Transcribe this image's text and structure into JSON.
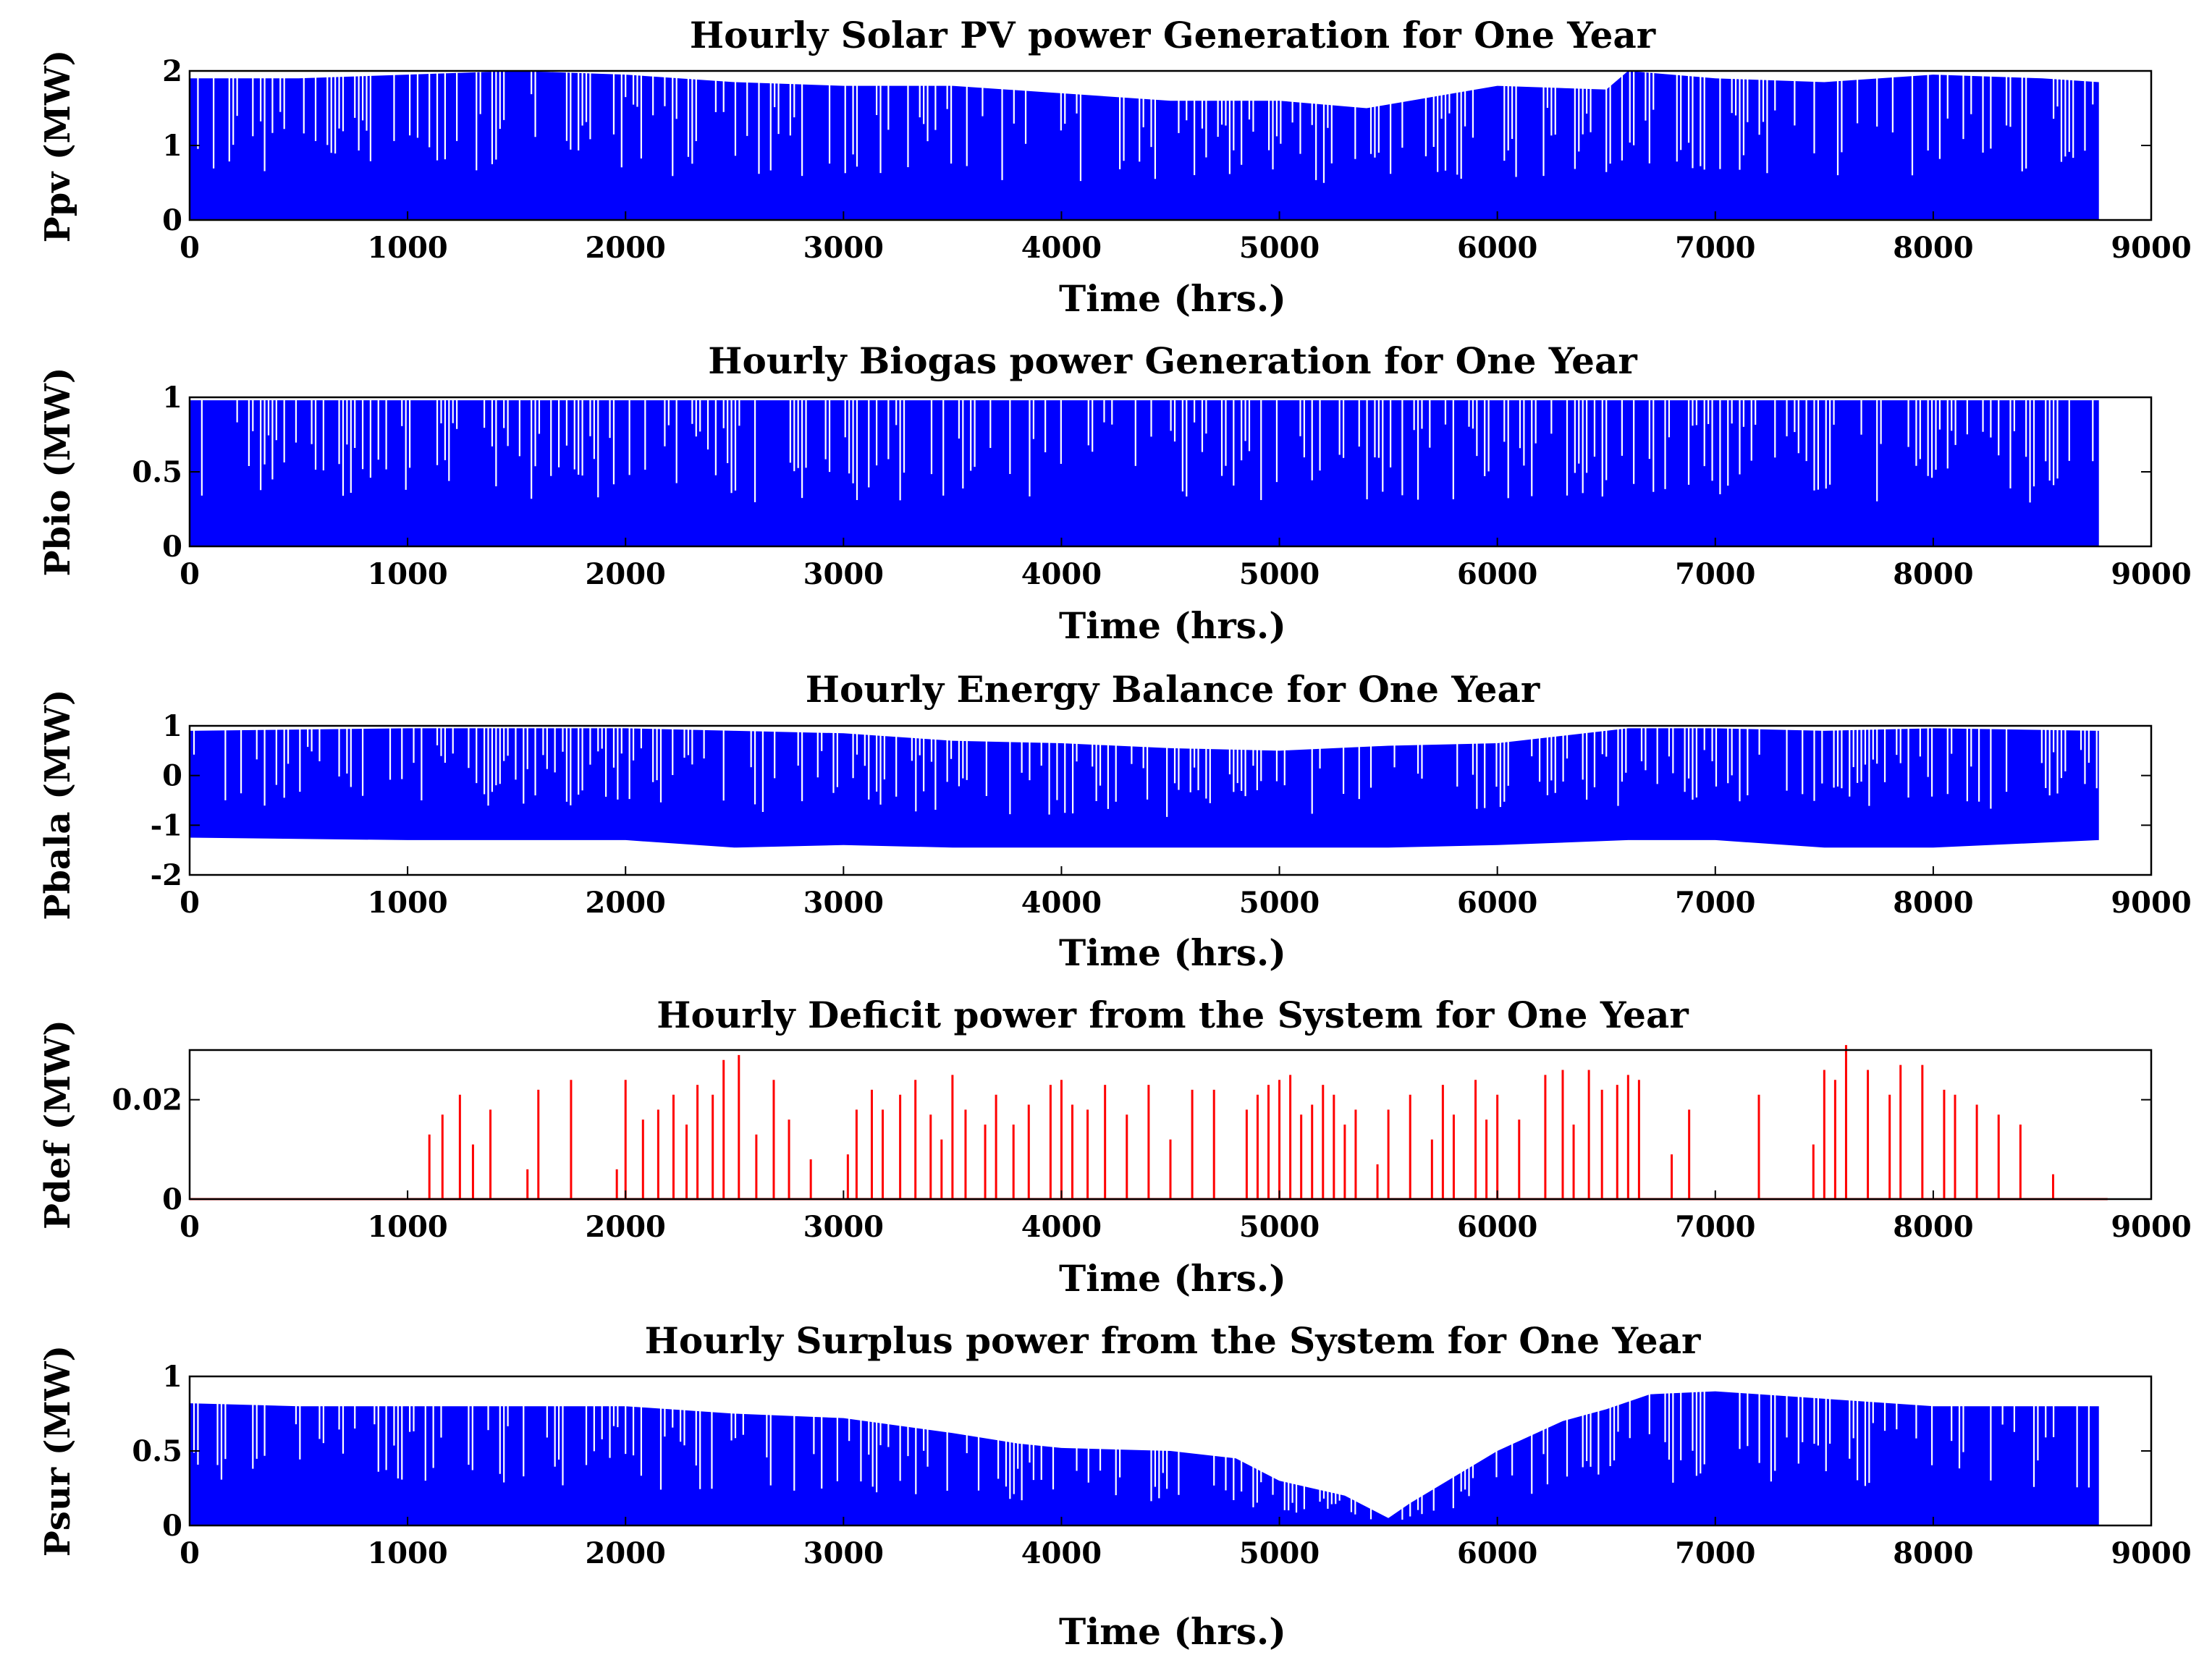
{
  "colors": {
    "pv": "#0000ff",
    "bio": "#0000ff",
    "balance": "#0000ff",
    "deficit": "#ff0000",
    "surplus": "#0000ff"
  },
  "chart_data": [
    {
      "id": "pv",
      "type": "area",
      "title": "Hourly Solar PV power Generation for One Year",
      "xlabel": "Time (hrs.)",
      "ylabel": "Ppv (MW)",
      "xlim": [
        0,
        9000
      ],
      "ylim": [
        0,
        2
      ],
      "xticks": [
        0,
        1000,
        2000,
        3000,
        4000,
        5000,
        6000,
        7000,
        8000,
        9000
      ],
      "yticks": [
        0,
        1,
        2
      ],
      "series": [
        {
          "color": "#0000ff",
          "x": [
            0,
            500,
            1000,
            1500,
            2000,
            2500,
            3000,
            3500,
            4000,
            4500,
            4900,
            5000,
            5400,
            6000,
            6500,
            6600,
            7000,
            7500,
            8000,
            8500,
            8760
          ],
          "ymin": [
            0,
            0,
            0,
            0,
            0,
            0,
            0,
            0,
            0,
            0,
            0,
            0,
            0,
            0,
            0,
            0,
            0,
            0,
            0,
            0,
            0
          ],
          "ymax": [
            1.9,
            1.9,
            1.95,
            2.0,
            1.95,
            1.85,
            1.8,
            1.8,
            1.7,
            1.6,
            1.6,
            1.6,
            1.5,
            1.8,
            1.75,
            2.0,
            1.9,
            1.85,
            1.95,
            1.9,
            1.85
          ]
        }
      ]
    },
    {
      "id": "bio",
      "type": "area",
      "title": "Hourly Biogas power Generation for One Year",
      "xlabel": "Time (hrs.)",
      "ylabel": "Pbio (MW)",
      "xlim": [
        0,
        9000
      ],
      "ylim": [
        0,
        1
      ],
      "xticks": [
        0,
        1000,
        2000,
        3000,
        4000,
        5000,
        6000,
        7000,
        8000,
        9000
      ],
      "yticks": [
        0,
        0.5,
        1
      ],
      "series": [
        {
          "color": "#0000ff",
          "x": [
            0,
            8760
          ],
          "ymin": [
            0,
            0
          ],
          "ymax": [
            0.98,
            0.98
          ]
        }
      ]
    },
    {
      "id": "balance",
      "type": "area",
      "title": "Hourly Energy Balance for One Year",
      "xlabel": "Time (hrs.)",
      "ylabel": "Pbala (MW)",
      "xlim": [
        0,
        9000
      ],
      "ylim": [
        -2,
        1
      ],
      "xticks": [
        0,
        1000,
        2000,
        3000,
        4000,
        5000,
        6000,
        7000,
        8000,
        9000
      ],
      "yticks": [
        -2,
        -1,
        0,
        1
      ],
      "series": [
        {
          "color": "#0000ff",
          "x": [
            0,
            1000,
            2000,
            2500,
            3000,
            3500,
            4000,
            4500,
            5000,
            5500,
            6000,
            6600,
            7000,
            7500,
            8000,
            8760
          ],
          "ymin": [
            -1.25,
            -1.3,
            -1.3,
            -1.45,
            -1.4,
            -1.45,
            -1.45,
            -1.45,
            -1.45,
            -1.45,
            -1.4,
            -1.3,
            -1.3,
            -1.45,
            -1.45,
            -1.3
          ],
          "ymax": [
            0.9,
            0.95,
            0.95,
            0.9,
            0.85,
            0.7,
            0.65,
            0.55,
            0.5,
            0.6,
            0.65,
            0.95,
            0.95,
            0.9,
            0.95,
            0.9
          ]
        }
      ]
    },
    {
      "id": "deficit",
      "type": "bar",
      "title": "Hourly Deficit power from the System for One Year",
      "xlabel": "Time (hrs.)",
      "ylabel": "Pdef (MW)",
      "xlim": [
        0,
        9000
      ],
      "ylim": [
        0,
        0.03
      ],
      "xticks": [
        0,
        1000,
        2000,
        3000,
        4000,
        5000,
        6000,
        7000,
        8000,
        9000
      ],
      "yticks": [
        0,
        0.02
      ],
      "series": [
        {
          "color": "#ff0000",
          "x": [
            1100,
            1160,
            1240,
            1300,
            1380,
            1550,
            1600,
            1750,
            1960,
            2000,
            2080,
            2150,
            2220,
            2280,
            2330,
            2400,
            2450,
            2520,
            2600,
            2680,
            2750,
            2850,
            3020,
            3060,
            3130,
            3180,
            3260,
            3330,
            3400,
            3450,
            3500,
            3560,
            3650,
            3700,
            3780,
            3850,
            3950,
            4000,
            4050,
            4120,
            4200,
            4300,
            4400,
            4500,
            4600,
            4700,
            4850,
            4900,
            4950,
            5000,
            5050,
            5100,
            5150,
            5200,
            5250,
            5300,
            5350,
            5450,
            5500,
            5600,
            5700,
            5750,
            5800,
            5900,
            5950,
            6000,
            6100,
            6220,
            6300,
            6350,
            6420,
            6480,
            6550,
            6600,
            6650,
            6800,
            6880,
            7200,
            7450,
            7500,
            7550,
            7600,
            7700,
            7800,
            7850,
            7950,
            8050,
            8100,
            8200,
            8300,
            8400,
            8550
          ],
          "y": [
            0.013,
            0.017,
            0.021,
            0.011,
            0.018,
            0.006,
            0.022,
            0.024,
            0.006,
            0.024,
            0.016,
            0.018,
            0.021,
            0.015,
            0.023,
            0.021,
            0.028,
            0.029,
            0.013,
            0.024,
            0.016,
            0.008,
            0.009,
            0.018,
            0.022,
            0.018,
            0.021,
            0.024,
            0.017,
            0.012,
            0.025,
            0.018,
            0.015,
            0.021,
            0.015,
            0.019,
            0.023,
            0.024,
            0.019,
            0.018,
            0.023,
            0.017,
            0.023,
            0.012,
            0.022,
            0.022,
            0.018,
            0.021,
            0.023,
            0.024,
            0.025,
            0.017,
            0.019,
            0.023,
            0.021,
            0.015,
            0.018,
            0.007,
            0.018,
            0.021,
            0.012,
            0.023,
            0.017,
            0.024,
            0.016,
            0.021,
            0.016,
            0.025,
            0.026,
            0.015,
            0.026,
            0.022,
            0.023,
            0.025,
            0.024,
            0.009,
            0.018,
            0.021,
            0.011,
            0.026,
            0.024,
            0.031,
            0.026,
            0.021,
            0.027,
            0.027,
            0.022,
            0.021,
            0.019,
            0.017,
            0.015,
            0.005
          ]
        }
      ]
    },
    {
      "id": "surplus",
      "type": "area",
      "title": "Hourly Surplus power from the System for One Year",
      "xlabel": "Time (hrs.)",
      "ylabel": "Psur (MW)",
      "xlim": [
        0,
        9000
      ],
      "ylim": [
        0,
        1
      ],
      "xticks": [
        0,
        1000,
        2000,
        3000,
        4000,
        5000,
        6000,
        7000,
        8000,
        9000
      ],
      "yticks": [
        0,
        0.5,
        1
      ],
      "series": [
        {
          "color": "#0000ff",
          "x": [
            0,
            500,
            1000,
            1500,
            2000,
            2500,
            3000,
            3500,
            3800,
            4000,
            4500,
            4800,
            5000,
            5300,
            5500,
            5600,
            6000,
            6300,
            6500,
            6700,
            7000,
            7500,
            8000,
            8500,
            8760
          ],
          "ymin": [
            0,
            0,
            0,
            0,
            0,
            0,
            0,
            0,
            0,
            0,
            0,
            0,
            0,
            0,
            0,
            0,
            0,
            0,
            0,
            0,
            0,
            0,
            0,
            0,
            0
          ],
          "ymax": [
            0.82,
            0.8,
            0.8,
            0.8,
            0.8,
            0.75,
            0.72,
            0.62,
            0.55,
            0.52,
            0.5,
            0.45,
            0.3,
            0.2,
            0.05,
            0.15,
            0.5,
            0.7,
            0.78,
            0.88,
            0.9,
            0.85,
            0.8,
            0.8,
            0.8
          ]
        }
      ]
    }
  ]
}
